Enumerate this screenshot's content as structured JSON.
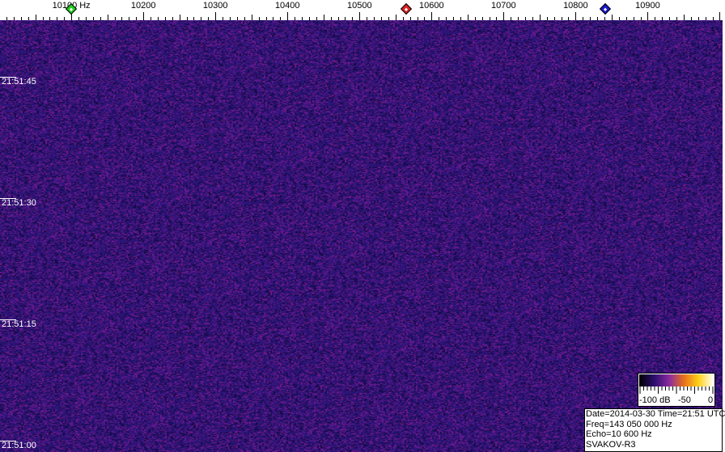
{
  "frequency_axis": {
    "unit": "Hz",
    "labels": [
      {
        "value": 10100,
        "text": "10100 Hz"
      },
      {
        "value": 10200,
        "text": "10200"
      },
      {
        "value": 10300,
        "text": "10300"
      },
      {
        "value": 10400,
        "text": "10400"
      },
      {
        "value": 10500,
        "text": "10500"
      },
      {
        "value": 10600,
        "text": "10600"
      },
      {
        "value": 10700,
        "text": "10700"
      },
      {
        "value": 10800,
        "text": "10800"
      },
      {
        "value": 10900,
        "text": "10900"
      }
    ],
    "range": [
      10001,
      11004
    ],
    "minor_tick_step": 10,
    "major_tick_step": 50
  },
  "markers": [
    {
      "name": "green-marker",
      "freq": 10100,
      "color": "#22cc22"
    },
    {
      "name": "red-marker",
      "freq": 10565,
      "color": "#dd2222"
    },
    {
      "name": "blue-marker",
      "freq": 10841,
      "color": "#1a1acc"
    }
  ],
  "time_axis": {
    "labels": [
      "21:51:45",
      "21:51:30",
      "21:51:15",
      "21:51:00"
    ]
  },
  "color_scale": {
    "labels": [
      "-100 dB",
      "-50",
      "0"
    ],
    "colors": [
      "#000000",
      "#2a0d6e",
      "#8a2a9e",
      "#e8701a",
      "#ffd21a",
      "#ffffff"
    ]
  },
  "info": {
    "line1": "Date=2014-03-30 Time=21:51 UTC",
    "line2": "Freq=143 050 000 Hz",
    "line3": "Echo=10 600 Hz",
    "line4": "SVAKOV-R3"
  },
  "waterfall": {
    "background": "#2b1470"
  }
}
